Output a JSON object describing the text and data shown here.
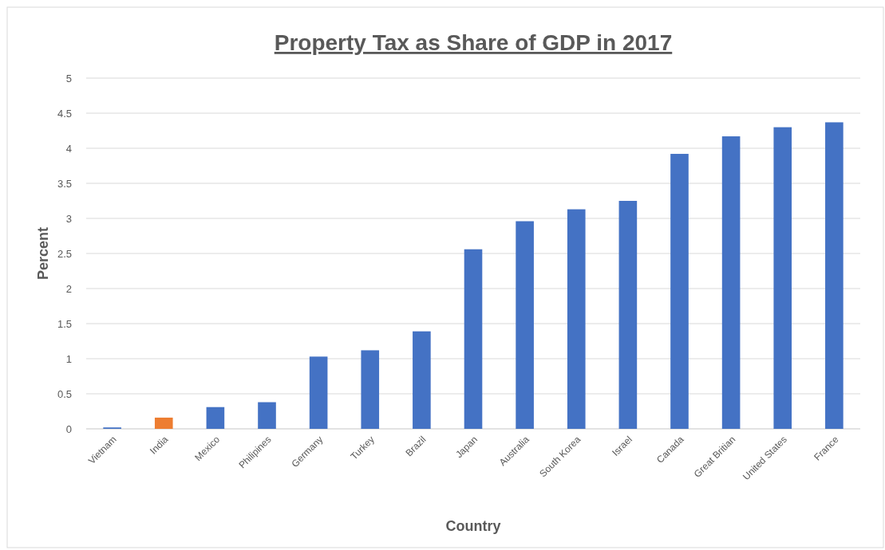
{
  "chart_data": {
    "type": "bar",
    "title": "Property Tax as Share of GDP in 2017",
    "xlabel": "Country",
    "ylabel": "Percent",
    "categories": [
      "Vietnam",
      "India",
      "Mexico",
      "Philipines",
      "Germany",
      "Turkey",
      "Brazil",
      "Japan",
      "Australia",
      "South Korea",
      "Israel",
      "Canada",
      "Great Britian",
      "United States",
      "France"
    ],
    "values": [
      0.02,
      0.16,
      0.31,
      0.38,
      1.03,
      1.12,
      1.39,
      2.56,
      2.96,
      3.13,
      3.25,
      3.92,
      4.17,
      4.3,
      4.37
    ],
    "colors": [
      "#4472c4",
      "#ed7d31",
      "#4472c4",
      "#4472c4",
      "#4472c4",
      "#4472c4",
      "#4472c4",
      "#4472c4",
      "#4472c4",
      "#4472c4",
      "#4472c4",
      "#4472c4",
      "#4472c4",
      "#4472c4",
      "#4472c4"
    ],
    "ylim": [
      0,
      5
    ],
    "yticks": [
      0,
      0.5,
      1,
      1.5,
      2,
      2.5,
      3,
      3.5,
      4,
      4.5,
      5
    ],
    "grid": "y"
  }
}
